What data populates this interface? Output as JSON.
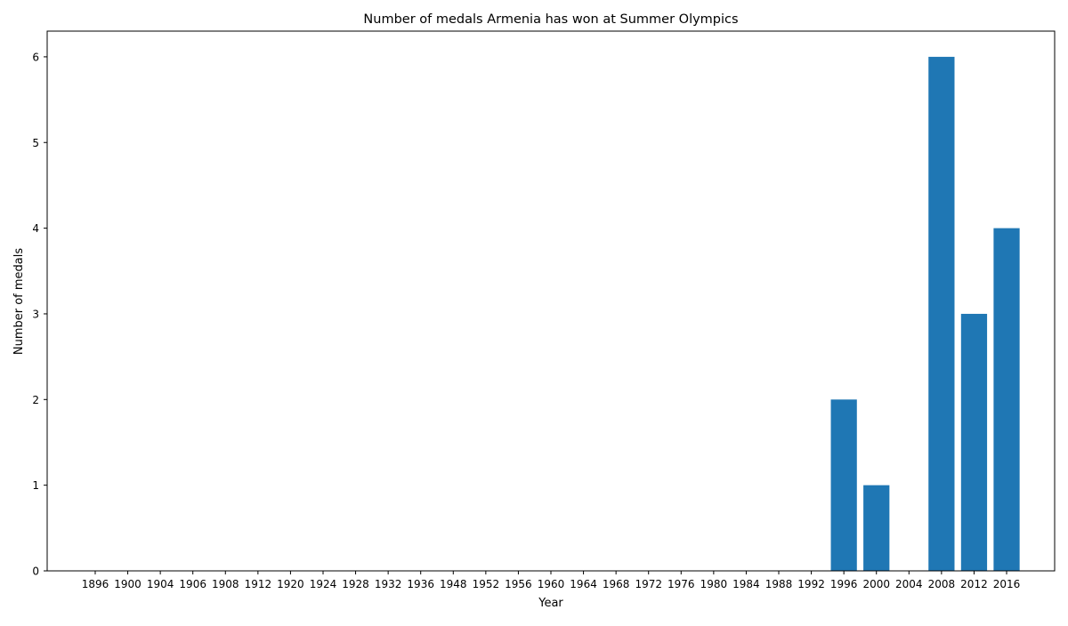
{
  "chart_data": {
    "type": "bar",
    "title": "Number of medals Armenia has won at Summer Olympics",
    "xlabel": "Year",
    "ylabel": "Number of medals",
    "categories": [
      "1896",
      "1900",
      "1904",
      "1906",
      "1908",
      "1912",
      "1920",
      "1924",
      "1928",
      "1932",
      "1936",
      "1948",
      "1952",
      "1956",
      "1960",
      "1964",
      "1968",
      "1972",
      "1976",
      "1980",
      "1984",
      "1988",
      "1992",
      "1996",
      "2000",
      "2004",
      "2008",
      "2012",
      "2016"
    ],
    "values": [
      0,
      0,
      0,
      0,
      0,
      0,
      0,
      0,
      0,
      0,
      0,
      0,
      0,
      0,
      0,
      0,
      0,
      0,
      0,
      0,
      0,
      0,
      0,
      2,
      1,
      0,
      6,
      3,
      4
    ],
    "ylim": [
      0,
      6.3
    ],
    "yticks": [
      0,
      1,
      2,
      3,
      4,
      5,
      6
    ],
    "grid": false,
    "bar_color": "#1f77b4"
  }
}
